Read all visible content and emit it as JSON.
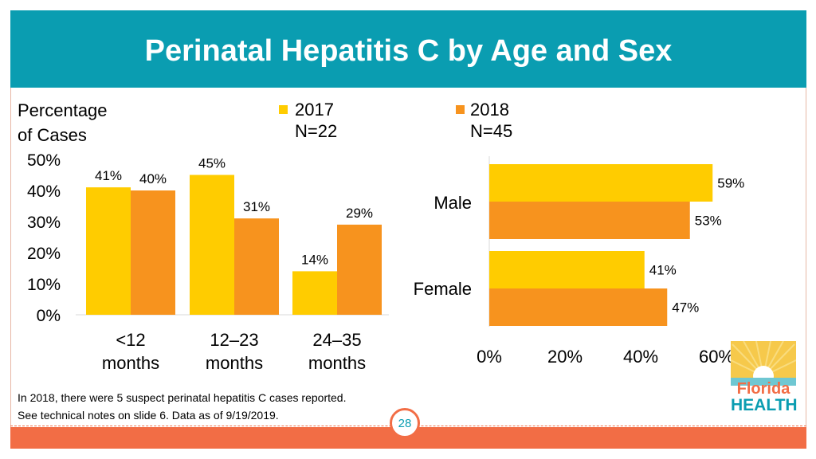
{
  "header": {
    "title": "Perinatal Hepatitis C by Age and Sex"
  },
  "footer": {
    "note_line1": "In 2018, there were 5 suspect perinatal hepatitis C cases reported.",
    "note_line2": "See technical notes on slide 6. Data as of 9/19/2019.",
    "page_number": "28"
  },
  "logo": {
    "line1": "Florida",
    "line2": "HEALTH"
  },
  "colors": {
    "header": "#0a9db1",
    "series_2017": "#ffcc00",
    "series_2018": "#f7931e",
    "accent": "#f26d45"
  },
  "legend": [
    {
      "label": "2017",
      "sub": "N=22"
    },
    {
      "label": "2018",
      "sub": "N=45"
    }
  ],
  "chart_data": [
    {
      "type": "bar",
      "title": "",
      "ylabel_line1": "Percentage",
      "ylabel_line2": "of Cases",
      "ylim": [
        0,
        50
      ],
      "yticks": [
        "0%",
        "10%",
        "20%",
        "30%",
        "40%",
        "50%"
      ],
      "categories": [
        [
          "<12",
          "months"
        ],
        [
          "12–23",
          "months"
        ],
        [
          "24–35",
          "months"
        ]
      ],
      "series": [
        {
          "name": "2017",
          "values": [
            41,
            45,
            14
          ],
          "labels": [
            "41%",
            "45%",
            "14%"
          ]
        },
        {
          "name": "2018",
          "values": [
            40,
            31,
            29
          ],
          "labels": [
            "40%",
            "31%",
            "29%"
          ]
        }
      ]
    },
    {
      "type": "bar",
      "orientation": "horizontal",
      "categories": [
        "Male",
        "Female"
      ],
      "xlim": [
        0,
        60
      ],
      "xticks": [
        "0%",
        "20%",
        "40%",
        "60%"
      ],
      "series": [
        {
          "name": "2017",
          "values": [
            59,
            41
          ],
          "labels": [
            "59%",
            "41%"
          ]
        },
        {
          "name": "2018",
          "values": [
            53,
            47
          ],
          "labels": [
            "53%",
            "47%"
          ]
        }
      ]
    }
  ]
}
